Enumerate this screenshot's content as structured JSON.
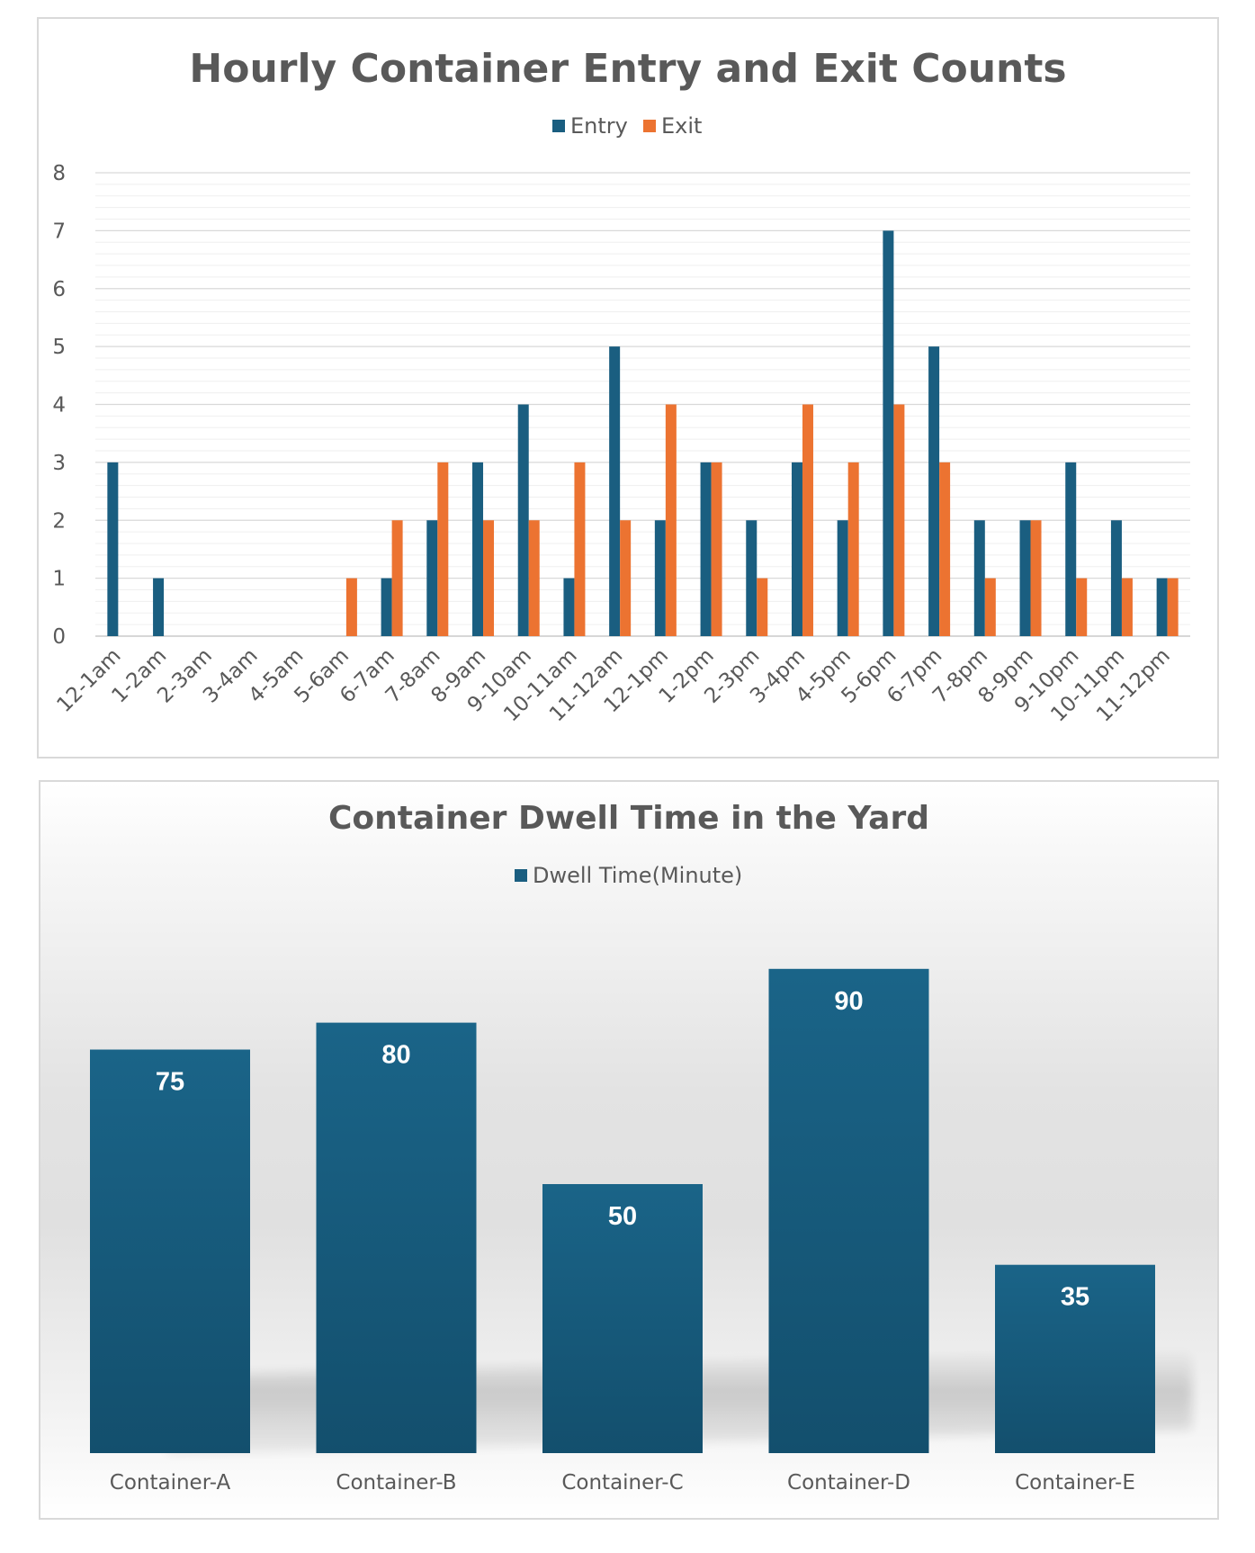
{
  "colors": {
    "entry": "#1a5e80",
    "exit": "#ec7331",
    "gridline": "#d9d9d9",
    "minor_gridline": "#efefef",
    "text": "#595959",
    "bar_top": "#1a6488",
    "bar_bottom": "#14506e"
  },
  "chart_data": [
    {
      "type": "bar",
      "title": "Hourly Container Entry and Exit Counts",
      "legend_position": "top",
      "grid": true,
      "ylim": [
        0,
        8
      ],
      "yticks": [
        "0",
        "1",
        "2",
        "3",
        "4",
        "5",
        "6",
        "7",
        "8"
      ],
      "categories": [
        "12-1am",
        "1-2am",
        "2-3am",
        "3-4am",
        "4-5am",
        "5-6am",
        "6-7am",
        "7-8am",
        "8-9am",
        "9-10am",
        "10-11am",
        "11-12am",
        "12-1pm",
        "1-2pm",
        "2-3pm",
        "3-4pm",
        "4-5pm",
        "5-6pm",
        "6-7pm",
        "7-8pm",
        "8-9pm",
        "9-10pm",
        "10-11pm",
        "11-12pm"
      ],
      "series": [
        {
          "name": "Entry",
          "values": [
            3,
            1,
            0,
            0,
            0,
            0,
            1,
            2,
            3,
            4,
            1,
            5,
            2,
            3,
            2,
            3,
            2,
            7,
            5,
            2,
            2,
            3,
            2,
            1
          ]
        },
        {
          "name": "Exit",
          "values": [
            0,
            0,
            0,
            0,
            0,
            1,
            2,
            3,
            2,
            2,
            3,
            2,
            4,
            3,
            1,
            4,
            3,
            4,
            3,
            1,
            2,
            1,
            1,
            1
          ]
        }
      ]
    },
    {
      "type": "bar",
      "title": "Container Dwell Time in the Yard",
      "legend_position": "top",
      "grid": false,
      "ylim": [
        0,
        100
      ],
      "categories": [
        "Container-A",
        "Container-B",
        "Container-C",
        "Container-D",
        "Container-E"
      ],
      "series": [
        {
          "name": "Dwell Time(Minute)",
          "values": [
            75,
            80,
            50,
            90,
            35
          ]
        }
      ],
      "data_labels": [
        "75",
        "80",
        "50",
        "90",
        "35"
      ]
    }
  ]
}
